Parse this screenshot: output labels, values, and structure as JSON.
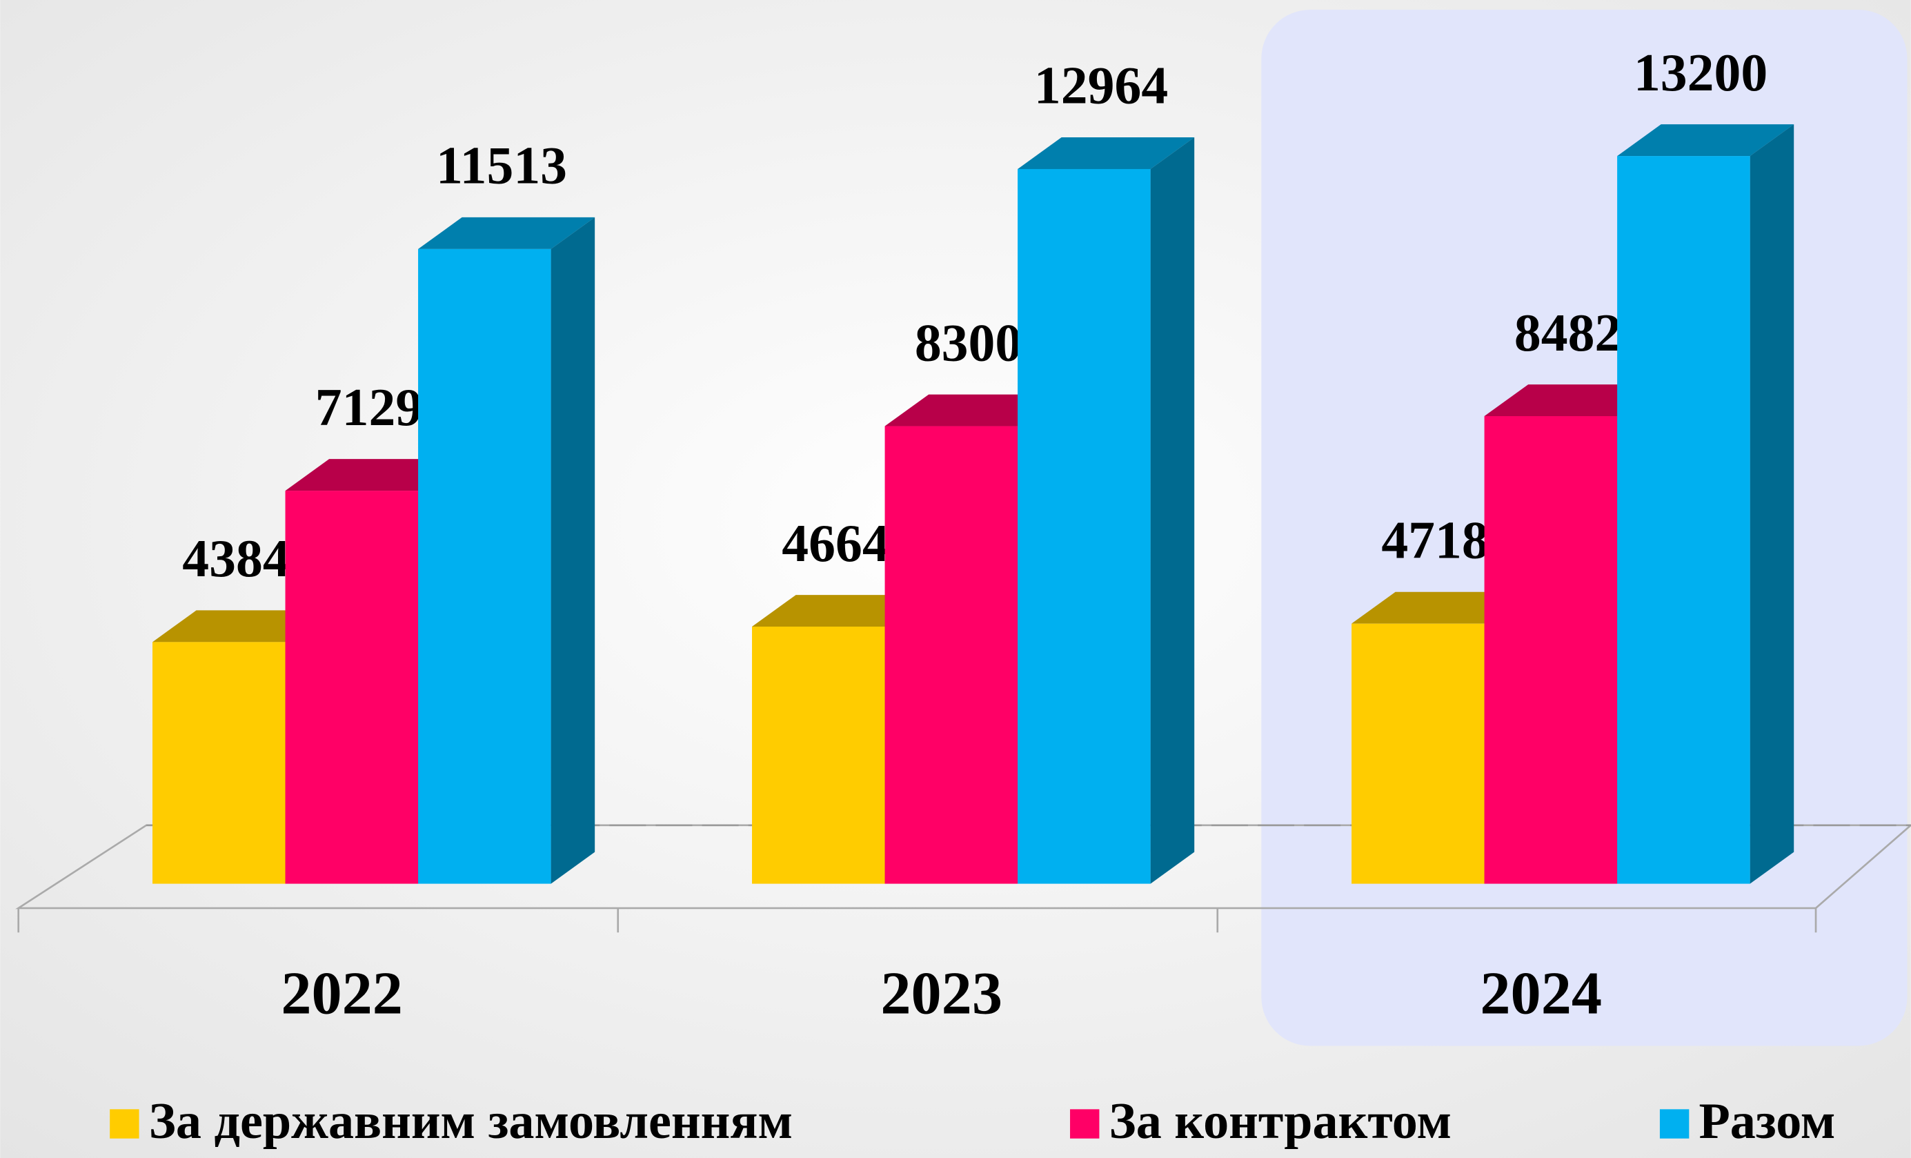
{
  "chart_data": {
    "type": "bar3d",
    "categories": [
      "2022",
      "2023",
      "2024"
    ],
    "series": [
      {
        "name": "За державним замовленням",
        "color": "#ffcc00",
        "values": [
          4384,
          4664,
          4718
        ]
      },
      {
        "name": "За контрактом",
        "color": "#ff0066",
        "values": [
          7129,
          8300,
          8482
        ]
      },
      {
        "name": "Разом",
        "color": "#00b0f0",
        "values": [
          11513,
          12964,
          13200
        ]
      }
    ]
  }
}
